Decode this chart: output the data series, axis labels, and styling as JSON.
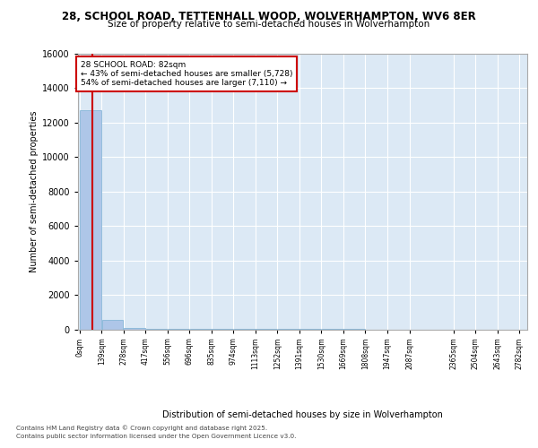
{
  "title": "28, SCHOOL ROAD, TETTENHALL WOOD, WOLVERHAMPTON, WV6 8ER",
  "subtitle": "Size of property relative to semi-detached houses in Wolverhampton",
  "xlabel": "Distribution of semi-detached houses by size in Wolverhampton",
  "ylabel": "Number of semi-detached properties",
  "annotation_text": "28 SCHOOL ROAD: 82sqm\n← 43% of semi-detached houses are smaller (5,728)\n54% of semi-detached houses are larger (7,110) →",
  "bar_edges": [
    0,
    139,
    278,
    417,
    556,
    696,
    835,
    974,
    1113,
    1252,
    1391,
    1530,
    1669,
    1808,
    1947,
    2087,
    2365,
    2504,
    2643,
    2782
  ],
  "bar_heights": [
    12700,
    550,
    80,
    20,
    10,
    5,
    3,
    2,
    2,
    1,
    1,
    1,
    1,
    0,
    0,
    0,
    0,
    0,
    0
  ],
  "bar_color": "#aec6e8",
  "bar_edge_color": "#7aafd4",
  "vline_color": "#cc0000",
  "vline_x": 82,
  "background_color": "#ffffff",
  "plot_bg_color": "#dce9f5",
  "ylim": [
    0,
    16000
  ],
  "yticks": [
    0,
    2000,
    4000,
    6000,
    8000,
    10000,
    12000,
    14000,
    16000
  ],
  "grid_color": "#ffffff",
  "footer_line1": "Contains HM Land Registry data © Crown copyright and database right 2025.",
  "footer_line2": "Contains public sector information licensed under the Open Government Licence v3.0.",
  "tick_labels": [
    "0sqm",
    "139sqm",
    "278sqm",
    "417sqm",
    "556sqm",
    "696sqm",
    "835sqm",
    "974sqm",
    "1113sqm",
    "1252sqm",
    "1391sqm",
    "1530sqm",
    "1669sqm",
    "1808sqm",
    "1947sqm",
    "2087sqm",
    "2365sqm",
    "2504sqm",
    "2643sqm",
    "2782sqm"
  ]
}
